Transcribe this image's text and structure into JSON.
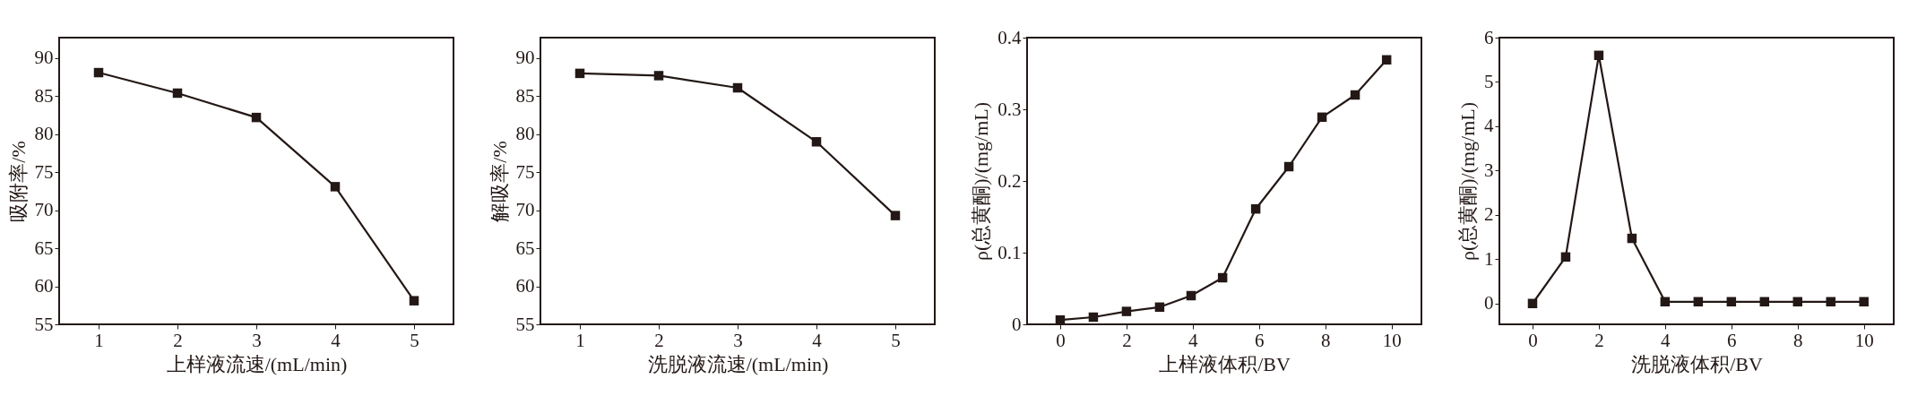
{
  "chart_data": [
    {
      "type": "line",
      "xlabel": "上样液流速/(mL/min)",
      "ylabel": "吸附率/%",
      "x": [
        1,
        2,
        3,
        4,
        5
      ],
      "xlim": [
        0.5,
        5.5
      ],
      "xticks": [
        1,
        2,
        3,
        4,
        5
      ],
      "ylim": [
        55,
        92.7
      ],
      "yticks": [
        55,
        60,
        65,
        70,
        75,
        80,
        85,
        90
      ],
      "grid": false,
      "marker": "square",
      "line_style": "solid",
      "series": [
        {
          "color": "#231815",
          "values": [
            88.1,
            85.4,
            82.2,
            73.1,
            58.1
          ]
        }
      ]
    },
    {
      "type": "line",
      "xlabel": "洗脱液流速/(mL/min)",
      "ylabel": "解吸率/%",
      "x": [
        1,
        2,
        3,
        4,
        5
      ],
      "xlim": [
        0.5,
        5.5
      ],
      "xticks": [
        1,
        2,
        3,
        4,
        5
      ],
      "ylim": [
        55,
        92.7
      ],
      "yticks": [
        55,
        60,
        65,
        70,
        75,
        80,
        85,
        90
      ],
      "grid": false,
      "marker": "square",
      "line_style": "solid",
      "series": [
        {
          "color": "#231815",
          "values": [
            88.0,
            87.7,
            86.1,
            79.0,
            69.3
          ]
        }
      ]
    },
    {
      "type": "line",
      "xlabel": "上样液体积/BV",
      "ylabel": "ρ(总黄酮)/(mg/mL)",
      "x": [
        0,
        1,
        2,
        3,
        3.95,
        4.9,
        5.9,
        6.9,
        7.9,
        8.9,
        9.85
      ],
      "xlim": [
        -1,
        10.9
      ],
      "xticks": [
        0,
        2,
        4,
        6,
        8,
        10
      ],
      "ylim": [
        0,
        0.4
      ],
      "yticks": [
        0,
        0.1,
        0.2,
        0.3,
        0.4
      ],
      "grid": false,
      "marker": "square",
      "line_style": "solid",
      "series": [
        {
          "color": "#231815",
          "values": [
            0.006,
            0.01,
            0.018,
            0.024,
            0.04,
            0.065,
            0.161,
            0.22,
            0.289,
            0.32,
            0.369
          ]
        }
      ]
    },
    {
      "type": "line",
      "xlabel": "洗脱液体积/BV",
      "ylabel": "ρ(总黄酮)/(mg/mL)",
      "x": [
        0,
        1,
        2,
        3,
        4,
        5,
        6,
        7,
        8,
        9,
        10
      ],
      "xlim": [
        -1,
        10.9
      ],
      "xticks": [
        0,
        2,
        4,
        6,
        8,
        10
      ],
      "ylim": [
        -0.47,
        6
      ],
      "yticks": [
        0,
        1,
        2,
        3,
        4,
        5,
        6
      ],
      "grid": false,
      "marker": "square",
      "line_style": "solid",
      "series": [
        {
          "color": "#231815",
          "values": [
            0,
            1.05,
            5.6,
            1.47,
            0.04,
            0.04,
            0.04,
            0.04,
            0.04,
            0.04,
            0.04
          ]
        }
      ]
    }
  ]
}
